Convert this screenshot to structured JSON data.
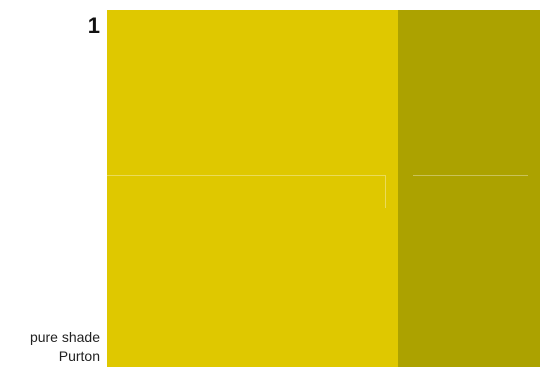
{
  "swatch": {
    "index": "1",
    "shade_label": "pure shade",
    "color_name": "Purton",
    "colors": {
      "main": "#dfc800",
      "side": "#aca200"
    }
  }
}
